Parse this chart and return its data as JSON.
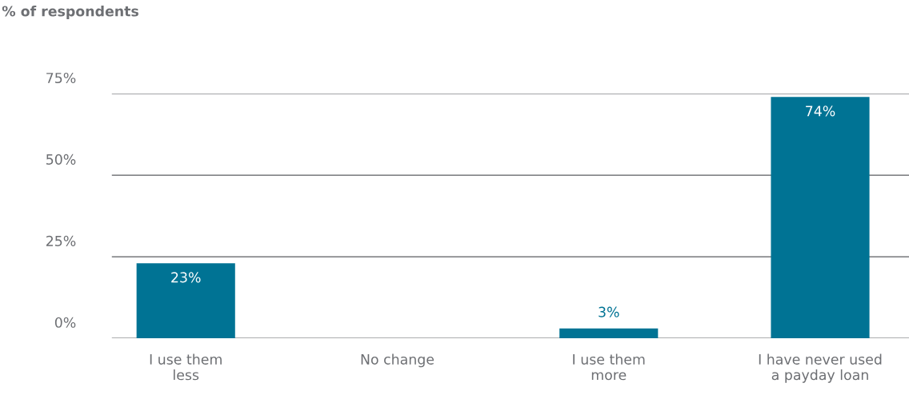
{
  "chart_data": {
    "type": "bar",
    "ylabel": "% of respondents",
    "categories": [
      "I use them\nless",
      "No change",
      "I use them\nmore",
      "I have never used\na payday loan"
    ],
    "values": [
      23,
      0,
      3,
      74
    ],
    "color": "#007394",
    "value_labels": [
      "23%",
      null,
      "3%",
      "74%"
    ],
    "ylim": [
      0,
      75
    ],
    "yticks": [
      {
        "value": 0,
        "label": "0%"
      },
      {
        "value": 25,
        "label": "25%"
      },
      {
        "value": 50,
        "label": "50%"
      },
      {
        "value": 75,
        "label": "75%"
      }
    ],
    "grid": "y"
  }
}
